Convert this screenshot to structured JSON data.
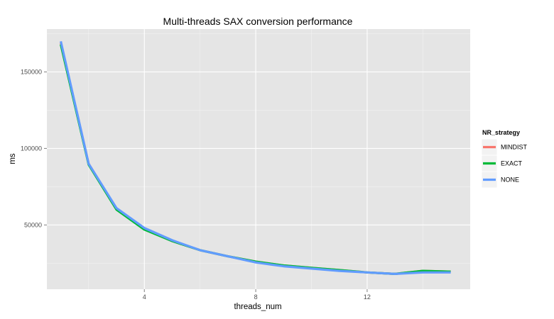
{
  "chart_data": {
    "type": "line",
    "title": "Multi-threads SAX conversion performance",
    "xlabel": "threads_num",
    "ylabel": "ms",
    "x": [
      1,
      2,
      3,
      4,
      5,
      6,
      7,
      8,
      9,
      10,
      11,
      12,
      13,
      14,
      15
    ],
    "series": [
      {
        "name": "MINDIST",
        "color": "#F8766D",
        "values": [
          169000,
          90000,
          60500,
          47500,
          39500,
          33500,
          29500,
          26000,
          23500,
          22000,
          20500,
          19000,
          18000,
          20000,
          19500
        ]
      },
      {
        "name": "EXACT",
        "color": "#00BA38",
        "values": [
          168000,
          89500,
          60000,
          47000,
          39500,
          33500,
          29500,
          26000,
          23500,
          22000,
          20500,
          19000,
          18000,
          20000,
          19500
        ]
      },
      {
        "name": "NONE",
        "color": "#619CFF",
        "values": [
          170000,
          90000,
          61000,
          48000,
          40000,
          33500,
          29500,
          25500,
          23000,
          21500,
          20000,
          19000,
          18000,
          19000,
          19000
        ]
      }
    ],
    "x_ticks": [
      4,
      8,
      12
    ],
    "y_ticks": [
      50000,
      100000,
      150000
    ],
    "xlim": [
      0.5,
      15.7
    ],
    "ylim": [
      8000,
      178000
    ],
    "legend": {
      "title": "NR_strategy",
      "position": "right"
    },
    "grid": true,
    "background": "#E5E5E5"
  }
}
